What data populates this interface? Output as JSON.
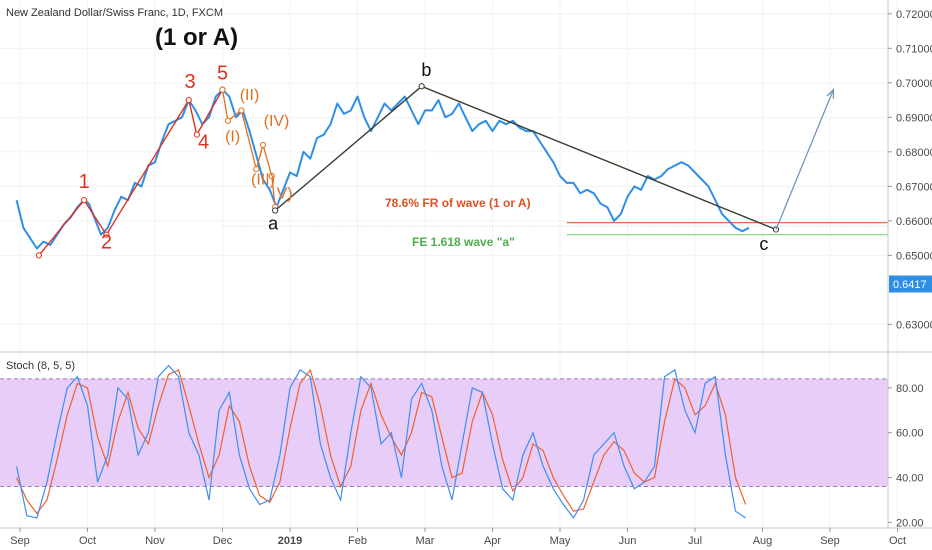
{
  "header": {
    "symbol_title": "New Zealand Dollar/Swiss Franc, 1D, FXCM"
  },
  "main_label": "(1 or A)",
  "price_badge": "0.6417",
  "colors": {
    "price": "#2f8fe6",
    "impulse": "#e0301e",
    "correction": "#3b3b2e",
    "fib_line": "#e07040",
    "fe_line": "#7dd67d",
    "stoch_k": "#3d8ff0",
    "stoch_d": "#f06030",
    "stoch_band": "#e6c8f7",
    "projection": "#7393c0"
  },
  "stoch": {
    "title": "Stoch (8, 5, 5)",
    "ticks": [
      "80.00",
      "60.00",
      "40.00",
      "20.00"
    ],
    "tick_values": [
      80,
      60,
      40,
      20
    ],
    "upper": 80,
    "lower": 20
  },
  "annotations": {
    "fib_text": "78.6% FR of wave (1 or A)",
    "fe_text": "FE 1.618 wave \"a\""
  },
  "chart_data": {
    "type": "line",
    "title": "New Zealand Dollar/Swiss Franc, 1D, FXCM",
    "xlabel": "",
    "ylabel": "",
    "x_ticks": [
      "Sep",
      "Oct",
      "Nov",
      "Dec",
      "2019",
      "Feb",
      "Mar",
      "Apr",
      "May",
      "Jun",
      "Jul",
      "Aug",
      "Sep",
      "Oct"
    ],
    "y_ticks": [
      "0.72000",
      "0.71000",
      "0.70000",
      "0.69000",
      "0.68000",
      "0.67000",
      "0.66000",
      "0.65000",
      "0.63000"
    ],
    "y_tick_values": [
      0.72,
      0.71,
      0.7,
      0.69,
      0.68,
      0.67,
      0.66,
      0.65,
      0.63
    ],
    "ylim": [
      0.622,
      0.724
    ],
    "x_range": [
      0,
      13
    ],
    "price_series": {
      "x": [
        -0.05,
        0.05,
        0.15,
        0.25,
        0.35,
        0.45,
        0.55,
        0.65,
        0.75,
        0.85,
        0.95,
        1.02,
        1.1,
        1.2,
        1.3,
        1.4,
        1.5,
        1.6,
        1.7,
        1.8,
        1.9,
        2.0,
        2.1,
        2.2,
        2.3,
        2.4,
        2.5,
        2.6,
        2.7,
        2.8,
        2.9,
        3.0,
        3.1,
        3.2,
        3.3,
        3.4,
        3.5,
        3.6,
        3.7,
        3.8,
        3.9,
        4.0,
        4.1,
        4.2,
        4.3,
        4.4,
        4.5,
        4.6,
        4.7,
        4.8,
        4.9,
        5.0,
        5.1,
        5.2,
        5.3,
        5.4,
        5.5,
        5.6,
        5.7,
        5.8,
        5.9,
        6.0,
        6.1,
        6.2,
        6.3,
        6.4,
        6.5,
        6.6,
        6.7,
        6.8,
        6.9,
        7.0,
        7.1,
        7.2,
        7.3,
        7.4,
        7.5,
        7.6,
        7.7,
        7.8,
        7.9,
        8.0,
        8.1,
        8.2,
        8.3,
        8.4,
        8.5,
        8.6,
        8.7,
        8.8,
        8.9,
        9.0,
        9.1,
        9.2,
        9.3,
        9.4,
        9.5,
        9.6,
        9.7,
        9.8,
        9.9,
        10.0,
        10.1,
        10.2,
        10.3,
        10.4,
        10.5,
        10.6,
        10.7,
        10.8
      ],
      "y": [
        0.666,
        0.658,
        0.655,
        0.652,
        0.654,
        0.653,
        0.656,
        0.659,
        0.661,
        0.664,
        0.666,
        0.665,
        0.661,
        0.656,
        0.658,
        0.663,
        0.667,
        0.666,
        0.671,
        0.67,
        0.676,
        0.677,
        0.683,
        0.688,
        0.689,
        0.69,
        0.695,
        0.692,
        0.688,
        0.69,
        0.696,
        0.698,
        0.696,
        0.69,
        0.692,
        0.686,
        0.679,
        0.672,
        0.669,
        0.664,
        0.669,
        0.674,
        0.673,
        0.68,
        0.678,
        0.684,
        0.685,
        0.688,
        0.694,
        0.691,
        0.692,
        0.696,
        0.69,
        0.686,
        0.69,
        0.694,
        0.692,
        0.694,
        0.696,
        0.692,
        0.688,
        0.692,
        0.692,
        0.695,
        0.69,
        0.691,
        0.694,
        0.69,
        0.686,
        0.688,
        0.689,
        0.686,
        0.689,
        0.688,
        0.689,
        0.687,
        0.686,
        0.686,
        0.683,
        0.68,
        0.677,
        0.673,
        0.671,
        0.671,
        0.668,
        0.669,
        0.668,
        0.665,
        0.664,
        0.66,
        0.662,
        0.667,
        0.67,
        0.669,
        0.673,
        0.672,
        0.673,
        0.675,
        0.676,
        0.677,
        0.676,
        0.674,
        0.672,
        0.67,
        0.666,
        0.662,
        0.66,
        0.658,
        0.657,
        0.658
      ]
    },
    "impulse_waves": {
      "x": [
        0.28,
        0.95,
        1.28,
        2.5,
        2.62,
        3.0
      ],
      "y": [
        0.65,
        0.666,
        0.656,
        0.695,
        0.685,
        0.698
      ]
    },
    "subwaves": {
      "x": [
        3.0,
        3.08,
        3.28,
        3.5,
        3.6,
        3.73,
        3.78
      ],
      "y": [
        0.698,
        0.689,
        0.692,
        0.675,
        0.682,
        0.673,
        0.664
      ]
    },
    "correction": {
      "x": [
        3.78,
        5.95,
        11.2
      ],
      "y": [
        0.663,
        0.699,
        0.6575
      ]
    },
    "projection": {
      "x": [
        11.2,
        12.05
      ],
      "y": [
        0.6575,
        0.698
      ]
    },
    "levels": {
      "fib_786": 0.6595,
      "fe_1618": 0.656,
      "a_low": 0.6585,
      "x_start": 8.1,
      "x_end": 12.9
    },
    "wave_labels": [
      {
        "text": "1",
        "x": 0.95,
        "y": 0.6695,
        "style": "red"
      },
      {
        "text": "2",
        "x": 1.28,
        "y": 0.652,
        "style": "red"
      },
      {
        "text": "3",
        "x": 2.52,
        "y": 0.6985,
        "style": "red"
      },
      {
        "text": "4",
        "x": 2.72,
        "y": 0.681,
        "style": "red"
      },
      {
        "text": "5",
        "x": 3.0,
        "y": 0.701,
        "style": "red"
      },
      {
        "text": "(II)",
        "x": 3.4,
        "y": 0.695,
        "style": "orange"
      },
      {
        "text": "(I)",
        "x": 3.15,
        "y": 0.683,
        "style": "orange"
      },
      {
        "text": "(IV)",
        "x": 3.8,
        "y": 0.6875,
        "style": "orange"
      },
      {
        "text": "(III)",
        "x": 3.6,
        "y": 0.6705,
        "style": "orange"
      },
      {
        "text": "V)",
        "x": 3.92,
        "y": 0.6665,
        "style": "orange"
      },
      {
        "text": "a",
        "x": 3.75,
        "y": 0.6575,
        "style": "black"
      },
      {
        "text": "b",
        "x": 6.02,
        "y": 0.702,
        "style": "black"
      },
      {
        "text": "c",
        "x": 11.02,
        "y": 0.6515,
        "style": "black"
      }
    ],
    "stoch_k": {
      "x": [
        -0.05,
        0.1,
        0.25,
        0.4,
        0.55,
        0.7,
        0.85,
        1.0,
        1.15,
        1.3,
        1.45,
        1.6,
        1.75,
        1.9,
        2.05,
        2.2,
        2.35,
        2.5,
        2.65,
        2.8,
        2.95,
        3.1,
        3.25,
        3.4,
        3.55,
        3.7,
        3.85,
        4.0,
        4.15,
        4.3,
        4.45,
        4.6,
        4.75,
        4.9,
        5.05,
        5.2,
        5.35,
        5.5,
        5.65,
        5.8,
        5.95,
        6.1,
        6.25,
        6.4,
        6.55,
        6.7,
        6.85,
        7.0,
        7.15,
        7.3,
        7.45,
        7.6,
        7.75,
        7.9,
        8.05,
        8.2,
        8.35,
        8.5,
        8.65,
        8.8,
        8.95,
        9.1,
        9.25,
        9.4,
        9.55,
        9.7,
        9.85,
        10.0,
        10.15,
        10.3,
        10.45,
        10.6,
        10.75
      ],
      "y": [
        45,
        23,
        22,
        38,
        60,
        80,
        85,
        72,
        38,
        50,
        80,
        75,
        50,
        60,
        85,
        90,
        85,
        60,
        50,
        30,
        70,
        78,
        50,
        35,
        28,
        30,
        50,
        80,
        88,
        85,
        55,
        40,
        30,
        60,
        85,
        80,
        55,
        60,
        40,
        75,
        82,
        70,
        45,
        30,
        55,
        80,
        78,
        55,
        35,
        30,
        50,
        60,
        45,
        35,
        28,
        22,
        30,
        50,
        55,
        60,
        45,
        35,
        38,
        45,
        85,
        88,
        70,
        60,
        82,
        85,
        50,
        25,
        22
      ]
    },
    "stoch_d": {
      "x": [
        -0.05,
        0.1,
        0.25,
        0.4,
        0.55,
        0.7,
        0.85,
        1.0,
        1.15,
        1.3,
        1.45,
        1.6,
        1.75,
        1.9,
        2.05,
        2.2,
        2.35,
        2.5,
        2.65,
        2.8,
        2.95,
        3.1,
        3.25,
        3.4,
        3.55,
        3.7,
        3.85,
        4.0,
        4.15,
        4.3,
        4.45,
        4.6,
        4.75,
        4.9,
        5.05,
        5.2,
        5.35,
        5.5,
        5.65,
        5.8,
        5.95,
        6.1,
        6.25,
        6.4,
        6.55,
        6.7,
        6.85,
        7.0,
        7.15,
        7.3,
        7.45,
        7.6,
        7.75,
        7.9,
        8.05,
        8.2,
        8.35,
        8.5,
        8.65,
        8.8,
        8.95,
        9.1,
        9.25,
        9.4,
        9.55,
        9.7,
        9.85,
        10.0,
        10.15,
        10.3,
        10.45,
        10.6,
        10.75
      ],
      "y": [
        40,
        30,
        24,
        30,
        48,
        68,
        82,
        80,
        58,
        45,
        65,
        78,
        62,
        55,
        72,
        86,
        88,
        72,
        55,
        40,
        50,
        72,
        65,
        45,
        32,
        29,
        38,
        62,
        82,
        88,
        72,
        50,
        36,
        45,
        70,
        82,
        68,
        58,
        50,
        60,
        78,
        76,
        58,
        40,
        42,
        65,
        78,
        68,
        48,
        34,
        40,
        55,
        52,
        40,
        32,
        25,
        26,
        38,
        50,
        56,
        52,
        42,
        38,
        40,
        65,
        84,
        80,
        68,
        72,
        82,
        68,
        40,
        28
      ]
    }
  }
}
